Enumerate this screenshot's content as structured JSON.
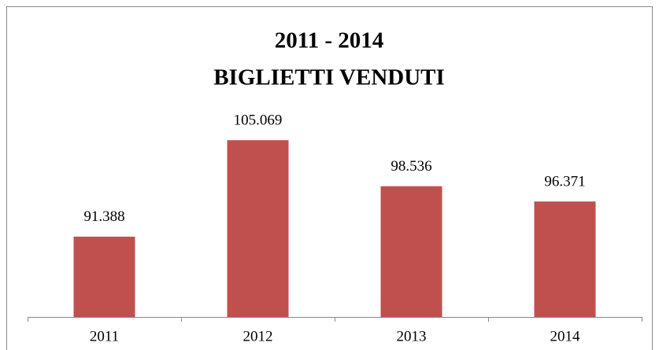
{
  "chart_data": {
    "type": "bar",
    "title": [
      "2011 - 2014",
      "BIGLIETTI VENDUTI"
    ],
    "categories": [
      "2011",
      "2012",
      "2013",
      "2014"
    ],
    "values": [
      91388,
      105069,
      98536,
      96371
    ],
    "value_labels": [
      "91.388",
      "105.069",
      "98.536",
      "96.371"
    ],
    "color": "#c0504d",
    "ylim": [
      80000,
      110000
    ]
  }
}
